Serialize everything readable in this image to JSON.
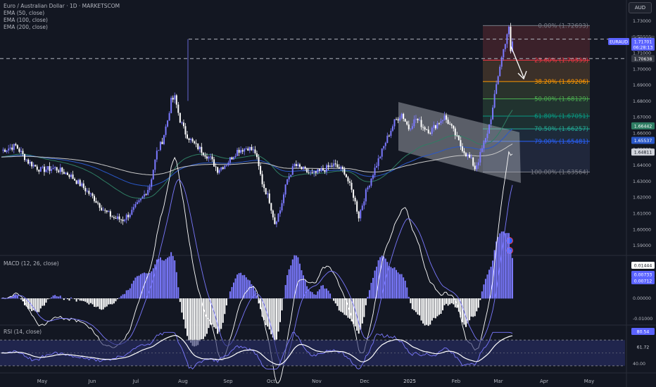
{
  "header": {
    "title": "Euro / Australian Dollar · 1D · MARKETSCOM",
    "indicators": [
      "EMA (50, close)",
      "EMA (100, close)",
      "EMA (200, close)"
    ],
    "currency": "AUD"
  },
  "colors": {
    "background": "#131722",
    "up_candle": "#7b79ff",
    "down_candle": "#ffffff",
    "ema50": "#2f7d63",
    "ema100": "#2a58c9",
    "ema200": "#c8c8c8",
    "macd_line": "#ffffff",
    "signal_line": "#7b79ff",
    "rsi_line": "#7b79ff",
    "rsi_ma": "#ffffff"
  },
  "chart_data": [
    {
      "type": "candlestick",
      "symbol": "EURAUD",
      "x_axis": {
        "ticks": [
          "May",
          "Jun",
          "Jul",
          "Aug",
          "Sep",
          "Oct",
          "Nov",
          "Dec",
          "2025",
          "Feb",
          "Mar",
          "Apr",
          "May"
        ]
      },
      "y_axis": {
        "range": [
          1.585,
          1.735
        ],
        "ticks": [
          "1.73000",
          "1.72000",
          "1.71000",
          "1.70000",
          "1.69000",
          "1.68000",
          "1.67000",
          "1.66000",
          "1.65000",
          "1.64000",
          "1.63000",
          "1.62000",
          "1.61000",
          "1.60000",
          "1.59000"
        ]
      },
      "approx_close_path": [
        [
          0,
          1.649
        ],
        [
          8,
          1.652
        ],
        [
          15,
          1.642
        ],
        [
          22,
          1.637
        ],
        [
          30,
          1.638
        ],
        [
          38,
          1.634
        ],
        [
          45,
          1.627
        ],
        [
          52,
          1.619
        ],
        [
          58,
          1.611
        ],
        [
          63,
          1.607
        ],
        [
          68,
          1.606
        ],
        [
          73,
          1.611
        ],
        [
          78,
          1.618
        ],
        [
          83,
          1.627
        ],
        [
          87,
          1.648
        ],
        [
          90,
          1.655
        ],
        [
          93,
          1.668
        ],
        [
          95,
          1.68
        ],
        [
          97,
          1.682
        ],
        [
          100,
          1.668
        ],
        [
          103,
          1.66
        ],
        [
          107,
          1.654
        ],
        [
          112,
          1.649
        ],
        [
          117,
          1.644
        ],
        [
          121,
          1.637
        ],
        [
          126,
          1.641
        ],
        [
          132,
          1.649
        ],
        [
          138,
          1.651
        ],
        [
          142,
          1.648
        ],
        [
          146,
          1.629
        ],
        [
          150,
          1.618
        ],
        [
          153,
          1.604
        ],
        [
          156,
          1.612
        ],
        [
          160,
          1.631
        ],
        [
          164,
          1.64
        ],
        [
          169,
          1.637
        ],
        [
          174,
          1.634
        ],
        [
          180,
          1.637
        ],
        [
          186,
          1.64
        ],
        [
          192,
          1.636
        ],
        [
          197,
          1.621
        ],
        [
          200,
          1.608
        ],
        [
          204,
          1.623
        ],
        [
          208,
          1.635
        ],
        [
          212,
          1.646
        ],
        [
          216,
          1.657
        ],
        [
          220,
          1.667
        ],
        [
          224,
          1.672
        ],
        [
          228,
          1.663
        ],
        [
          232,
          1.669
        ],
        [
          236,
          1.664
        ],
        [
          240,
          1.661
        ],
        [
          244,
          1.666
        ],
        [
          248,
          1.67
        ],
        [
          251,
          1.665
        ],
        [
          254,
          1.659
        ],
        [
          257,
          1.652
        ],
        [
          260,
          1.647
        ],
        [
          263,
          1.643
        ],
        [
          265,
          1.638
        ],
        [
          267,
          1.643
        ],
        [
          269,
          1.65
        ],
        [
          271,
          1.656
        ],
        [
          273,
          1.665
        ],
        [
          275,
          1.675
        ],
        [
          277,
          1.69
        ],
        [
          279,
          1.702
        ],
        [
          281,
          1.712
        ],
        [
          283,
          1.722
        ],
        [
          284,
          1.725
        ],
        [
          285,
          1.71
        ],
        [
          286,
          1.717
        ]
      ],
      "price_labels": [
        {
          "price": 1.71848,
          "text": "1.71848"
        },
        {
          "price": 1.71701,
          "text": "1.71701",
          "symbol": "EURAUD",
          "countdown": "06:28:13"
        },
        {
          "price": 1.70638,
          "text": "1.70638"
        },
        {
          "price": 1.66442,
          "text": "1.66442"
        },
        {
          "price": 1.65537,
          "text": "1.65537"
        },
        {
          "price": 1.64811,
          "text": "1.64811"
        }
      ],
      "fibonacci": [
        {
          "label": "0.00% (1.72693)",
          "price": 1.72693,
          "color": "#787b86"
        },
        {
          "label": "23.60% (1.70539)",
          "price": 1.70539,
          "color": "#f23645"
        },
        {
          "label": "38.20% (1.69206)",
          "price": 1.69206,
          "color": "#ff9800"
        },
        {
          "label": "50.00% (1.68129)",
          "price": 1.68129,
          "color": "#4caf50"
        },
        {
          "label": "61.80% (1.67051)",
          "price": 1.67051,
          "color": "#089981"
        },
        {
          "label": "70.50% (1.66257)",
          "price": 1.66257,
          "color": "#22ab94"
        },
        {
          "label": "79.00% (1.65481)",
          "price": 1.65481,
          "color": "#2962ff"
        },
        {
          "label": "100.00% (1.63564)",
          "price": 1.63564,
          "color": "#787b86"
        }
      ]
    },
    {
      "type": "macd",
      "title": "MACD (12, 26, close)",
      "y_axis": {
        "ticks": [
          "0.00000",
          "-0.01000"
        ]
      },
      "value_labels": [
        "0.01444",
        "0.00733",
        "0.00712"
      ]
    },
    {
      "type": "rsi",
      "title": "RSI (14, close)",
      "y_axis": {
        "ticks": [
          "40.00"
        ]
      },
      "value_labels": [
        "80.54",
        "61.72"
      ]
    }
  ]
}
